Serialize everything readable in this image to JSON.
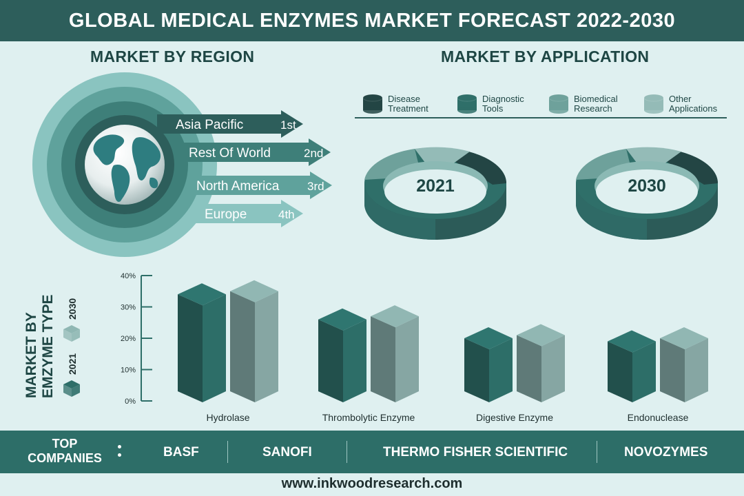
{
  "header": {
    "title": "GLOBAL MEDICAL ENZYMES MARKET FORECAST 2022-2030"
  },
  "region": {
    "title": "MARKET BY REGION",
    "rows": [
      {
        "name": "Asia Pacific",
        "rank": "1st",
        "color": "#2d5e5b"
      },
      {
        "name": "Rest Of World",
        "rank": "2nd",
        "color": "#3e7f79"
      },
      {
        "name": "North America",
        "rank": "3rd",
        "color": "#5fa29c"
      },
      {
        "name": "Europe",
        "rank": "4th",
        "color": "#8ac4c0"
      }
    ]
  },
  "application": {
    "title": "MARKET BY APPLICATION",
    "legend": [
      {
        "label": "Disease\nTreatment",
        "color": "#234544"
      },
      {
        "label": "Diagnostic\nTools",
        "color": "#2f6f69"
      },
      {
        "label": "Biomedical\nResearch",
        "color": "#6ea19b"
      },
      {
        "label": "Other\nApplications",
        "color": "#94bbb7"
      }
    ],
    "donuts": [
      {
        "year": "2021"
      },
      {
        "year": "2030"
      }
    ]
  },
  "type": {
    "title_line1": "MARKET BY",
    "title_line2": "EMZYME TYPE",
    "legend_2021": "2021",
    "legend_2030": "2030",
    "color_2021": "#2d6e68",
    "color_2030": "#8fb7b3"
  },
  "chart_data": {
    "type": "bar",
    "categories": [
      "Hydrolase",
      "Thrombolytic Enzyme",
      "Digestive Enzyme",
      "Endonuclease"
    ],
    "series": [
      {
        "name": "2021",
        "values": [
          34,
          26,
          20,
          19
        ]
      },
      {
        "name": "2030",
        "values": [
          35,
          27,
          21,
          20
        ]
      }
    ],
    "yticks": [
      "0%",
      "10%",
      "20%",
      "30%",
      "40%"
    ],
    "ylim": [
      0,
      40
    ]
  },
  "footer": {
    "top_line1": "TOP",
    "top_line2": "COMPANIES",
    "companies": [
      "BASF",
      "SANOFI",
      "THERMO FISHER SCIENTIFIC",
      "NOVOZYMES"
    ],
    "website": "www.inkwoodresearch.com"
  }
}
